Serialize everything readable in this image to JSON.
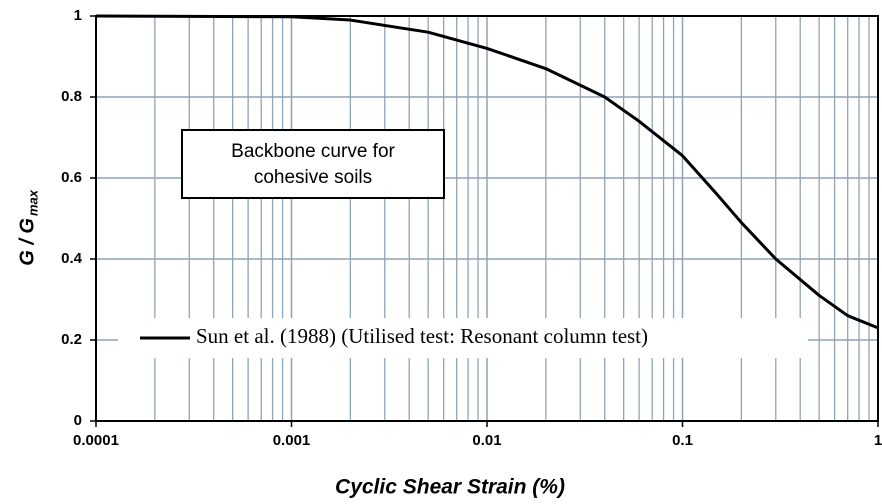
{
  "chart_data": {
    "type": "line",
    "xlabel": "Cyclic Shear Strain (%)",
    "ylabel": "G / G",
    "ylabel_sub": "max",
    "annotation": [
      "Backbone curve for",
      "cohesive soils"
    ],
    "x": [
      0.0001,
      0.001,
      0.002,
      0.005,
      0.01,
      0.02,
      0.04,
      0.06,
      0.1,
      0.15,
      0.2,
      0.3,
      0.5,
      0.7,
      1
    ],
    "series": [
      {
        "name": "Sun et al. (1988) (Utilised test: Resonant column test)",
        "color": "#000000",
        "values": [
          1,
          0.998,
          0.99,
          0.96,
          0.92,
          0.87,
          0.8,
          0.74,
          0.655,
          0.56,
          0.49,
          0.4,
          0.31,
          0.26,
          0.23
        ]
      }
    ],
    "xlim": [
      0.0001,
      1
    ],
    "xticks": [
      0.0001,
      0.001,
      0.01,
      0.1,
      1
    ],
    "xscale": "log",
    "ylim": [
      0,
      1
    ],
    "yticks": [
      0,
      0.2,
      0.4,
      0.6,
      0.8,
      1
    ],
    "grid": true,
    "minor_grid": true,
    "grid_color": "#8fa3b8"
  }
}
